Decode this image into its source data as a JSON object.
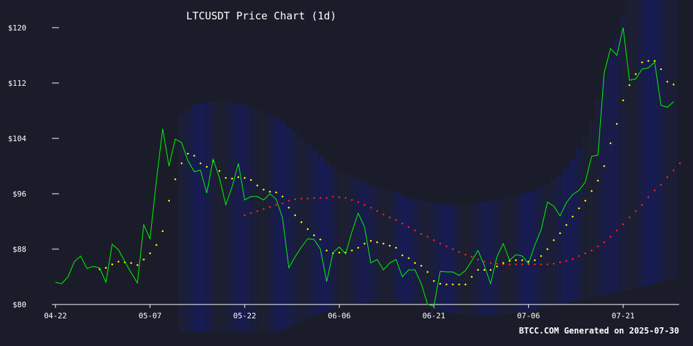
{
  "title": "LTCUSDT Price Chart (1d)",
  "footer": "BTCC.COM Generated on 2025-07-30",
  "colors": {
    "background": "#1a1d29",
    "price_line": "#00ff00",
    "ma_short": "#ffff00",
    "ma_long": "#ff2020",
    "bands": "#1a1f8a",
    "axis": "#ffffff"
  },
  "chart_data": {
    "type": "line",
    "x_ticks": [
      "04-22",
      "05-07",
      "05-22",
      "06-06",
      "06-21",
      "07-06",
      "07-21"
    ],
    "x_tick_index": [
      0,
      15,
      30,
      45,
      60,
      75,
      90
    ],
    "y_ticks": [
      {
        "value": 80,
        "label": "$80"
      },
      {
        "value": 88,
        "label": "$88"
      },
      {
        "value": 96,
        "label": "$96"
      },
      {
        "value": 104,
        "label": "$104"
      },
      {
        "value": 112,
        "label": "$112"
      },
      {
        "value": 120,
        "label": "$120"
      }
    ],
    "ylim": [
      80,
      120
    ],
    "grid": false,
    "price": [
      83.2,
      83.0,
      84.0,
      86.2,
      87.0,
      85.2,
      85.5,
      85.3,
      83.2,
      88.7,
      87.9,
      86.2,
      84.6,
      83.1,
      91.5,
      89.5,
      97.8,
      105.4,
      100.0,
      103.9,
      103.4,
      100.8,
      99.2,
      99.4,
      96.1,
      101.0,
      98.3,
      94.4,
      97.0,
      100.4,
      95.1,
      95.6,
      95.6,
      95.1,
      96.0,
      95.2,
      92.5,
      85.3,
      86.9,
      88.3,
      89.5,
      89.4,
      88.0,
      83.3,
      87.5,
      88.3,
      87.3,
      90.5,
      93.2,
      91.2,
      86.0,
      86.5,
      85.0,
      86.0,
      86.5,
      84.0,
      85.0,
      85.0,
      83.0,
      80.0,
      79.8,
      84.8,
      84.7,
      84.7,
      84.2,
      84.9,
      86.3,
      87.8,
      85.6,
      83.0,
      86.9,
      88.8,
      86.4,
      87.2,
      87.0,
      85.9,
      88.6,
      90.8,
      94.8,
      94.2,
      92.8,
      94.7,
      95.9,
      96.5,
      97.7,
      101.4,
      101.6,
      113.5,
      117.0,
      116.0,
      120.0,
      112.4,
      112.6,
      114.0,
      114.2,
      115.0,
      108.8,
      108.5,
      109.3
    ],
    "ma_short": [
      null,
      null,
      null,
      null,
      null,
      null,
      null,
      85.1,
      85.3,
      85.8,
      86.2,
      86.1,
      86.0,
      85.7,
      86.5,
      87.4,
      88.6,
      90.6,
      95.0,
      98.1,
      100.4,
      101.8,
      101.5,
      100.4,
      99.9,
      100.7,
      99.3,
      98.3,
      98.2,
      98.4,
      98.3,
      98.0,
      97.2,
      96.6,
      96.3,
      96.2,
      95.6,
      94.0,
      92.9,
      91.9,
      90.9,
      90.0,
      89.4,
      87.8,
      87.4,
      87.5,
      87.5,
      87.8,
      88.2,
      88.8,
      89.2,
      89.0,
      88.8,
      88.5,
      88.2,
      87.1,
      86.7,
      86.0,
      85.6,
      84.7,
      83.4,
      83.0,
      82.9,
      82.9,
      82.9,
      82.9,
      84.0,
      85.0,
      85.0,
      85.0,
      85.5,
      86.0,
      86.3,
      86.4,
      86.4,
      86.2,
      86.4,
      87.0,
      88.0,
      89.3,
      90.3,
      91.5,
      92.7,
      93.9,
      95.0,
      96.4,
      97.9,
      100.0,
      103.3,
      106.1,
      109.5,
      111.7,
      113.3,
      115.0,
      115.2,
      115.2,
      114.0,
      112.2,
      111.8
    ],
    "ma_long": [
      null,
      null,
      null,
      null,
      null,
      null,
      null,
      null,
      null,
      null,
      null,
      null,
      null,
      null,
      null,
      null,
      null,
      null,
      null,
      null,
      null,
      null,
      null,
      null,
      null,
      null,
      null,
      null,
      null,
      null,
      92.9,
      93.2,
      93.5,
      93.8,
      94.1,
      94.4,
      94.6,
      95.0,
      95.2,
      95.3,
      95.3,
      95.4,
      95.4,
      95.4,
      95.6,
      95.5,
      95.4,
      95.1,
      94.8,
      94.4,
      94.0,
      93.5,
      93.0,
      92.6,
      92.2,
      91.7,
      91.2,
      90.7,
      90.2,
      89.8,
      89.3,
      88.8,
      88.4,
      88.0,
      87.6,
      87.2,
      86.9,
      86.5,
      86.2,
      86.0,
      85.9,
      85.8,
      85.8,
      85.8,
      85.8,
      85.8,
      85.8,
      85.8,
      85.8,
      85.9,
      86.1,
      86.3,
      86.6,
      87.0,
      87.4,
      87.8,
      88.4,
      89.0,
      89.8,
      90.7,
      91.6,
      92.6,
      93.5,
      94.4,
      95.5,
      96.5,
      97.3,
      98.4,
      99.4,
      100.4
    ],
    "band_upper": [
      null,
      null,
      null,
      null,
      null,
      null,
      null,
      null,
      null,
      null,
      null,
      null,
      null,
      null,
      null,
      null,
      null,
      null,
      null,
      null,
      107.5,
      108.2,
      108.8,
      109.0,
      109.2,
      109.3,
      109.3,
      109.3,
      109.2,
      109.0,
      108.8,
      108.5,
      108.2,
      107.8,
      107.3,
      106.9,
      106.4,
      105.6,
      104.9,
      104.1,
      103.2,
      102.3,
      101.4,
      100.5,
      99.8,
      99.3,
      98.9,
      98.5,
      98.1,
      97.6,
      97.2,
      96.9,
      96.6,
      96.4,
      96.2,
      95.8,
      95.4,
      95.2,
      95.0,
      94.8,
      94.6,
      94.5,
      94.4,
      94.4,
      94.4,
      94.4,
      94.5,
      94.6,
      94.8,
      94.9,
      95.1,
      95.3,
      95.5,
      95.7,
      95.9,
      96.2,
      96.5,
      96.9,
      97.4,
      98.0,
      98.8,
      99.8,
      101.0,
      102.6,
      104.5,
      106.8,
      109.6,
      112.7,
      115.6,
      118.5,
      121.8,
      124.7,
      127.6,
      130.6,
      133.6,
      136.4,
      139.0,
      141.5,
      143.8
    ],
    "band_lower": [
      null,
      null,
      null,
      null,
      null,
      null,
      null,
      null,
      null,
      null,
      null,
      null,
      null,
      null,
      null,
      null,
      null,
      null,
      null,
      null,
      76.0,
      75.5,
      75.2,
      75.0,
      74.8,
      74.7,
      74.6,
      74.6,
      74.6,
      74.7,
      74.8,
      74.9,
      75.1,
      75.4,
      75.6,
      75.9,
      76.3,
      76.7,
      77.1,
      77.5,
      78.0,
      78.4,
      78.7,
      79.0,
      79.3,
      79.6,
      79.8,
      80.0,
      80.2,
      80.3,
      80.4,
      80.4,
      80.4,
      80.4,
      80.4,
      80.3,
      80.2,
      80.0,
      79.8,
      79.5,
      79.3,
      79.1,
      78.9,
      78.7,
      78.6,
      78.5,
      78.5,
      78.5,
      78.5,
      78.5,
      78.5,
      78.6,
      78.7,
      78.8,
      78.9,
      79.0,
      79.2,
      79.4,
      79.6,
      79.8,
      80.0,
      80.2,
      80.4,
      80.6,
      80.8,
      81.0,
      81.2,
      81.4,
      81.6,
      81.8,
      82.0,
      82.2,
      82.4,
      82.6,
      82.8,
      83.0,
      83.2,
      83.4,
      83.6
    ]
  }
}
